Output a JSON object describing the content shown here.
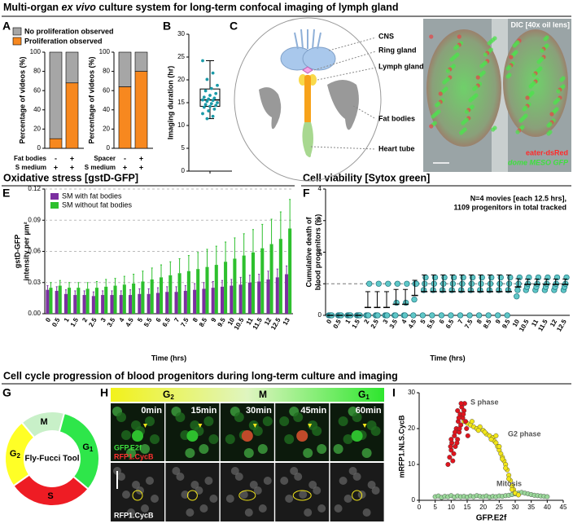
{
  "header": {
    "title": [
      "Multi-organ ",
      "ex vivo",
      " culture system for long-term confocal imaging of lymph gland"
    ]
  },
  "sections": [
    "Oxidative stress [gstD-GFP]",
    "Cell viability [Sytox green]",
    "Cell cycle progression of blood progenitors during long-term culture and imaging"
  ],
  "panel_labels": [
    "A",
    "B",
    "C",
    "D",
    "E",
    "F",
    "G",
    "H",
    "I"
  ],
  "diagram_c": {
    "labels": [
      "CNS",
      "Ring gland",
      "Lymph gland",
      "Fat bodies",
      "Heart tube"
    ]
  },
  "image_d": {
    "title": "DIC [40x oil lens]",
    "labels": [
      "eater-dsRed",
      "dome MESO GFP"
    ]
  },
  "cycle_g": {
    "center": "Fly-Fucci Tool",
    "phases": [
      {
        "label": "M"
      },
      {
        "label": "G",
        "sub": "1"
      },
      {
        "label": "S"
      },
      {
        "label": "G",
        "sub": "2"
      }
    ]
  },
  "timelapse_h": {
    "phases": [
      {
        "label": "G",
        "sub": "2"
      },
      {
        "label": "M"
      },
      {
        "label": "G",
        "sub": "1"
      }
    ],
    "times": [
      "0min",
      "15min",
      "30min",
      "45min",
      "60min"
    ],
    "channels": [
      "GFP.E2f",
      "RFP1.CycB"
    ],
    "bottom_channel": "RFP1.CycB"
  },
  "chart_data": [
    {
      "type": "stacked-bar",
      "ylabel": "Percentage of videos (%)",
      "ylim": [
        0,
        100
      ],
      "yticks": [
        0,
        20,
        40,
        60,
        80,
        100
      ],
      "series": [
        {
          "name": "No proliferation observed",
          "color": "#a6a6a6",
          "values": [
            90,
            32,
            36,
            20
          ]
        },
        {
          "name": "Proliferation observed",
          "color": "#f7881f",
          "values": [
            10,
            68,
            64,
            80
          ]
        }
      ],
      "panels": [
        {
          "conditions": [
            {
              "label": "Fat bodies",
              "marks": [
                "-",
                "+"
              ]
            },
            {
              "label": "S medium",
              "marks": [
                "+",
                "+"
              ]
            }
          ]
        },
        {
          "conditions": [
            {
              "label": "Spacer",
              "marks": [
                "-",
                "+"
              ]
            },
            {
              "label": "S medium",
              "marks": [
                "+",
                "+"
              ]
            }
          ]
        }
      ]
    },
    {
      "type": "box",
      "ylabel": "Imaging duration (hr)",
      "ylim": [
        0,
        30
      ],
      "yticks": [
        0,
        5,
        10,
        15,
        20,
        25,
        30
      ],
      "color": "#1a9aa8",
      "box": {
        "min": 11.5,
        "q1": 14.2,
        "median": 15.6,
        "q3": 18,
        "max": 24.2
      },
      "points": [
        24.2,
        21.5,
        20.1,
        18.8,
        18.1,
        17.6,
        17,
        16.6,
        16.2,
        16,
        15.8,
        15.6,
        15.5,
        15.3,
        15,
        14.8,
        14.6,
        14.4,
        14.2,
        14,
        13.6,
        13.2,
        12.6,
        12,
        11.5
      ]
    },
    {
      "type": "grouped-bar",
      "ylabel": [
        "gstD-GFP",
        "intensity per µm²"
      ],
      "xlabel": "Time (hrs)",
      "grid": true,
      "legend": "upper left",
      "categories": [
        "0",
        "0.5",
        "1",
        "1.5",
        "2",
        "2.5",
        "3",
        "3.5",
        "4",
        "4.5",
        "5",
        "5.5",
        "6",
        "6.5",
        "7",
        "7.5",
        "8",
        "8.5",
        "9",
        "9.5",
        "10",
        "10.5",
        "11",
        "11.5",
        "12",
        "12.5",
        "13"
      ],
      "ylim": [
        0,
        0.12
      ],
      "yticks": [
        {
          "value": 0,
          "label": "0.00"
        },
        0.03,
        0.06,
        0.09,
        0.12
      ],
      "series": [
        {
          "name": "SM with fat bodies",
          "color": "#7b2fa0",
          "values": [
            0.023,
            0.022,
            0.019,
            0.018,
            0.018,
            0.017,
            0.018,
            0.018,
            0.018,
            0.018,
            0.019,
            0.019,
            0.02,
            0.021,
            0.021,
            0.022,
            0.023,
            0.024,
            0.025,
            0.026,
            0.027,
            0.028,
            0.03,
            0.031,
            0.033,
            0.035,
            0.038
          ],
          "errors": [
            0.004,
            0.004,
            0.004,
            0.004,
            0.004,
            0.004,
            0.004,
            0.004,
            0.004,
            0.005,
            0.005,
            0.005,
            0.005,
            0.005,
            0.005,
            0.005,
            0.006,
            0.006,
            0.006,
            0.006,
            0.006,
            0.007,
            0.007,
            0.007,
            0.008,
            0.008,
            0.008
          ]
        },
        {
          "name": "SM without fat bodies",
          "color": "#2ec02e",
          "values": [
            0.025,
            0.027,
            0.025,
            0.025,
            0.024,
            0.025,
            0.026,
            0.027,
            0.028,
            0.029,
            0.031,
            0.033,
            0.035,
            0.037,
            0.039,
            0.041,
            0.043,
            0.045,
            0.047,
            0.05,
            0.053,
            0.056,
            0.059,
            0.063,
            0.067,
            0.072,
            0.082
          ],
          "errors": [
            0.005,
            0.005,
            0.005,
            0.005,
            0.006,
            0.006,
            0.007,
            0.007,
            0.008,
            0.009,
            0.01,
            0.011,
            0.012,
            0.013,
            0.014,
            0.015,
            0.016,
            0.017,
            0.018,
            0.019,
            0.02,
            0.021,
            0.022,
            0.023,
            0.024,
            0.026,
            0.028
          ]
        }
      ]
    },
    {
      "type": "dot-plot",
      "ylabel": [
        "Cumulative death of",
        "blood progenitors (%)"
      ],
      "xlabel": "Time (hrs)",
      "color": "#5fc7c7",
      "reference_line": 1,
      "annotation": [
        "N=4 movies [each 12.5 hrs],",
        "1109 progenitors in total tracked"
      ],
      "categories": [
        "0",
        "0.5",
        "1",
        "1.5",
        "2",
        "2.5",
        "3",
        "3.5",
        "4",
        "4.5",
        "5",
        "5.5",
        "6",
        "6.5",
        "7",
        "7.5",
        "8",
        "8.5",
        "9",
        "9.5",
        "10",
        "10.5",
        "11",
        "11.5",
        "12",
        "12.5"
      ],
      "ylim": [
        0,
        4
      ],
      "yticks": [
        0,
        1,
        2,
        3,
        4
      ],
      "points": [
        [
          0,
          0,
          0,
          0
        ],
        [
          0,
          0,
          0,
          0
        ],
        [
          0,
          0,
          0,
          0
        ],
        [
          0,
          0,
          0,
          0
        ],
        [
          0,
          0,
          0,
          1
        ],
        [
          0,
          0,
          0,
          1
        ],
        [
          0,
          0,
          0,
          1
        ],
        [
          0,
          0,
          0.4,
          1
        ],
        [
          0,
          0,
          0.4,
          1
        ],
        [
          0,
          0.5,
          1,
          1
        ],
        [
          0,
          0.8,
          1,
          1.2
        ],
        [
          0,
          0.8,
          1,
          1.2
        ],
        [
          0,
          0.8,
          1,
          1.2
        ],
        [
          0,
          0.8,
          1,
          1.2
        ],
        [
          0,
          0.8,
          1,
          1.2
        ],
        [
          0,
          0.8,
          1,
          1.2
        ],
        [
          0,
          0.8,
          1,
          1.2
        ],
        [
          0,
          0.8,
          1,
          1.2
        ],
        [
          0,
          0.8,
          1,
          1.2
        ],
        [
          0,
          0.8,
          1,
          1.2
        ],
        [
          0.6,
          0.8,
          1,
          1.2
        ],
        [
          0.8,
          0.9,
          1,
          1.2
        ],
        [
          0.8,
          0.9,
          1,
          1.2
        ],
        [
          0.8,
          0.9,
          1,
          1.2
        ],
        [
          0.8,
          0.9,
          1,
          1.2
        ],
        [
          0.8,
          0.9,
          1,
          1.2
        ]
      ],
      "means": [
        0,
        0,
        0,
        0,
        0.25,
        0.25,
        0.25,
        0.35,
        0.35,
        0.63,
        0.75,
        0.75,
        0.75,
        0.75,
        0.75,
        0.75,
        0.75,
        0.75,
        0.75,
        0.75,
        0.9,
        0.98,
        0.98,
        0.98,
        0.98,
        0.98
      ],
      "errors": [
        0,
        0,
        0,
        0,
        0.5,
        0.5,
        0.5,
        0.47,
        0.47,
        0.48,
        0.53,
        0.53,
        0.53,
        0.53,
        0.53,
        0.53,
        0.53,
        0.53,
        0.53,
        0.53,
        0.26,
        0.17,
        0.17,
        0.17,
        0.17,
        0.17
      ]
    },
    {
      "type": "scatter",
      "xlabel": "GFP.E2f",
      "ylabel": "mRFP1.NLS.CycB",
      "xlim": [
        0,
        45
      ],
      "xticks": [
        0,
        5,
        10,
        15,
        20,
        25,
        30,
        35,
        40,
        45
      ],
      "ylim": [
        0,
        30
      ],
      "yticks": [
        0,
        10,
        20,
        30
      ],
      "series": [
        {
          "name": "S phase",
          "color": "#e0141e",
          "x": [
            9,
            9.5,
            10,
            10.2,
            10.8,
            11,
            11.3,
            11.6,
            12,
            12.2,
            12.5,
            12.8,
            13,
            13.3,
            13.6,
            14,
            14.2,
            14.5,
            10.5,
            11.8,
            12.6,
            13.8,
            9.8,
            11.2,
            12.4,
            13.1,
            14.8,
            15.2,
            10,
            12
          ],
          "y": [
            10,
            12,
            14,
            16,
            13,
            18,
            15,
            20,
            17,
            22,
            19,
            24,
            21,
            26,
            23,
            25,
            27,
            22,
            11,
            16,
            20,
            24,
            15,
            19,
            23,
            27,
            20,
            18,
            17,
            25
          ]
        },
        {
          "name": "G2 phase",
          "color": "#f2e61a",
          "x": [
            14,
            15,
            16,
            17,
            18,
            19,
            20,
            21,
            22,
            23,
            23.5,
            24,
            24.5,
            25,
            25.5,
            26,
            26.5,
            27,
            27.5,
            28,
            28.5,
            29,
            29.5,
            30,
            31,
            16.5,
            18.5,
            20.5,
            22.5,
            24,
            25,
            26,
            27,
            28,
            29
          ],
          "y": [
            22,
            21.5,
            21,
            20.5,
            20,
            20.5,
            19.5,
            18.5,
            18,
            17.5,
            16.5,
            16,
            15,
            14,
            13,
            12,
            11,
            10,
            8.5,
            7,
            5.5,
            4,
            3,
            2,
            1.5,
            22,
            19.5,
            19,
            17,
            18,
            15,
            11.5,
            9,
            6,
            3
          ]
        },
        {
          "name": "Mitosis",
          "color": "#9ad89a",
          "x": [
            5,
            6,
            7,
            8,
            9,
            10,
            11,
            12,
            13,
            14,
            15,
            16,
            17,
            18,
            19,
            20,
            21,
            22,
            23,
            24,
            25,
            26,
            27,
            28,
            29,
            30,
            31,
            32,
            33,
            34,
            35,
            36,
            37,
            38,
            39,
            40
          ],
          "y": [
            1,
            1.2,
            0.8,
            1.1,
            1,
            1.3,
            0.9,
            1.2,
            1,
            1.1,
            0.9,
            1.2,
            1,
            1.3,
            1.1,
            1,
            1.2,
            0.9,
            1.1,
            1,
            1.2,
            1.1,
            1.3,
            1.4,
            1.6,
            1.8,
            2,
            2.2,
            2,
            1.8,
            1.6,
            1.4,
            1.3,
            1.2,
            1.1,
            1
          ]
        }
      ]
    }
  ]
}
